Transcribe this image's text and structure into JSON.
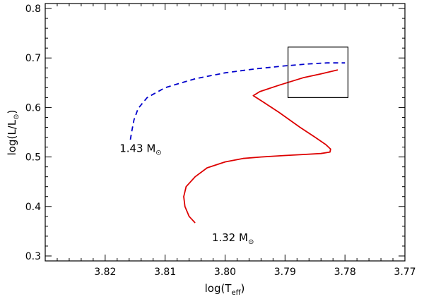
{
  "chart_data": {
    "type": "line",
    "xlabel": "log(T",
    "xlabel_sub": "eff",
    "xlabel_close": ")",
    "ylabel": "log(L/L",
    "ylabel_sym": "⊙",
    "ylabel_close": ")",
    "xlim": [
      3.83,
      3.77
    ],
    "ylim": [
      0.29,
      0.81
    ],
    "x_reversed": true,
    "xticks": [
      3.82,
      3.81,
      3.8,
      3.79,
      3.78,
      3.77
    ],
    "xtick_labels": [
      "3.82",
      "3.81",
      "3.80",
      "3.79",
      "3.78",
      "3.77"
    ],
    "yticks": [
      0.3,
      0.4,
      0.5,
      0.6,
      0.7,
      0.8
    ],
    "ytick_labels": [
      "0.3",
      "0.4",
      "0.5",
      "0.6",
      "0.7",
      "0.8"
    ],
    "grid": false,
    "series": [
      {
        "label": "1.43 M",
        "label_sym": "⊙",
        "color": "#0000cc",
        "style": "dashed",
        "x": [
          3.8158,
          3.8156,
          3.8152,
          3.8145,
          3.813,
          3.81,
          3.805,
          3.8,
          3.795,
          3.79,
          3.786,
          3.783,
          3.78
        ],
        "y": [
          0.535,
          0.55,
          0.575,
          0.598,
          0.62,
          0.64,
          0.658,
          0.67,
          0.678,
          0.684,
          0.688,
          0.69,
          0.69
        ]
      },
      {
        "label": "1.32 M",
        "label_sym": "⊙",
        "color": "#dd0000",
        "style": "solid",
        "x": [
          3.805,
          3.806,
          3.8067,
          3.8069,
          3.8065,
          3.805,
          3.803,
          3.8,
          3.797,
          3.794,
          3.79,
          3.787,
          3.784,
          3.7825,
          3.7824,
          3.7832,
          3.785,
          3.7875,
          3.791,
          3.7935,
          3.7953,
          3.7942,
          3.791,
          3.787,
          3.784,
          3.7812
        ],
        "y": [
          0.367,
          0.38,
          0.4,
          0.42,
          0.44,
          0.46,
          0.478,
          0.49,
          0.497,
          0.5,
          0.503,
          0.505,
          0.507,
          0.51,
          0.516,
          0.525,
          0.54,
          0.56,
          0.59,
          0.61,
          0.624,
          0.632,
          0.645,
          0.66,
          0.668,
          0.676
        ]
      }
    ],
    "annotations": [
      {
        "text": "1.43 M",
        "sym": "⊙",
        "x": 3.8176,
        "y": 0.51
      },
      {
        "text": "1.32 M",
        "sym": "⊙",
        "x": 3.8022,
        "y": 0.33
      }
    ],
    "box": {
      "x0": 3.7895,
      "x1": 3.7795,
      "y0": 0.62,
      "y1": 0.722
    }
  }
}
